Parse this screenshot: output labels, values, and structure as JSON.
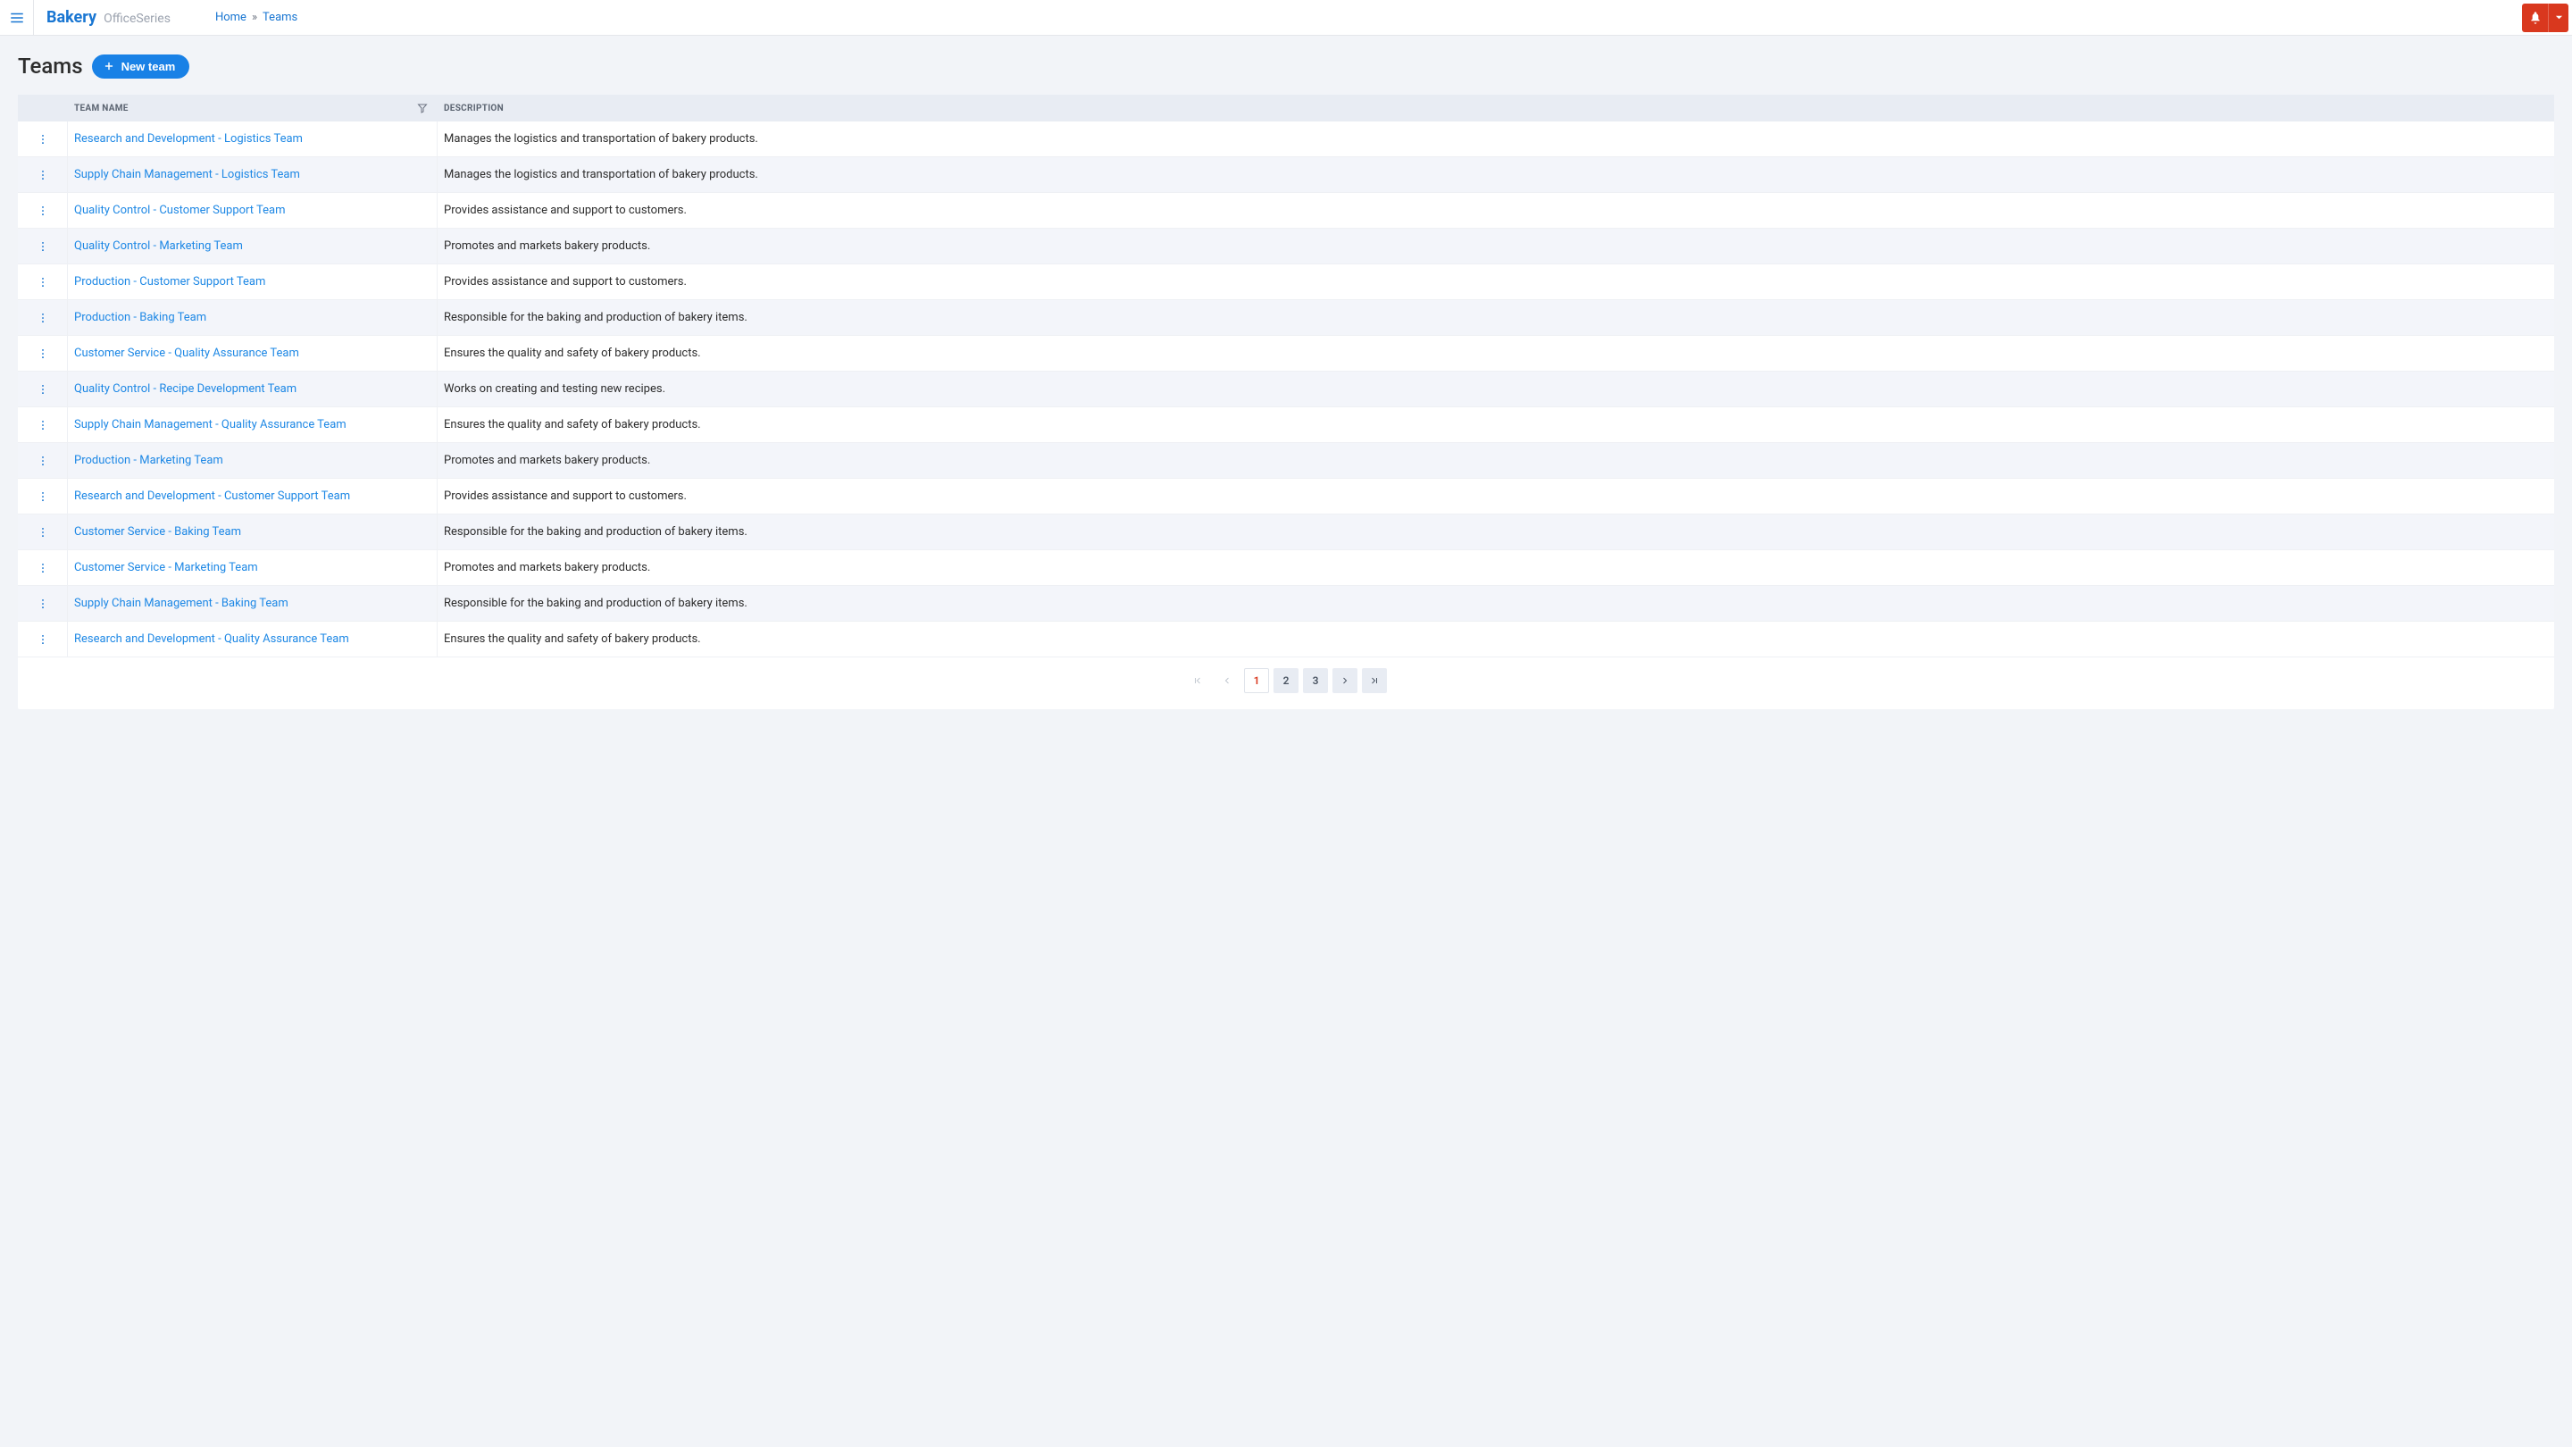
{
  "header": {
    "brand_name": "Bakery",
    "brand_suffix": "OfficeSeries",
    "breadcrumb": {
      "home": "Home",
      "separator": "»",
      "current": "Teams"
    }
  },
  "page": {
    "title": "Teams",
    "new_button_label": "New team"
  },
  "table": {
    "columns": {
      "name": "TEAM NAME",
      "description": "DESCRIPTION"
    },
    "rows": [
      {
        "name": "Research and Development - Logistics Team",
        "description": "Manages the logistics and transportation of bakery products."
      },
      {
        "name": "Supply Chain Management - Logistics Team",
        "description": "Manages the logistics and transportation of bakery products."
      },
      {
        "name": "Quality Control - Customer Support Team",
        "description": "Provides assistance and support to customers."
      },
      {
        "name": "Quality Control - Marketing Team",
        "description": "Promotes and markets bakery products."
      },
      {
        "name": "Production - Customer Support Team",
        "description": "Provides assistance and support to customers."
      },
      {
        "name": "Production - Baking Team",
        "description": "Responsible for the baking and production of bakery items."
      },
      {
        "name": "Customer Service - Quality Assurance Team",
        "description": "Ensures the quality and safety of bakery products."
      },
      {
        "name": "Quality Control - Recipe Development Team",
        "description": "Works on creating and testing new recipes."
      },
      {
        "name": "Supply Chain Management - Quality Assurance Team",
        "description": "Ensures the quality and safety of bakery products."
      },
      {
        "name": "Production - Marketing Team",
        "description": "Promotes and markets bakery products."
      },
      {
        "name": "Research and Development - Customer Support Team",
        "description": "Provides assistance and support to customers."
      },
      {
        "name": "Customer Service - Baking Team",
        "description": "Responsible for the baking and production of bakery items."
      },
      {
        "name": "Customer Service - Marketing Team",
        "description": "Promotes and markets bakery products."
      },
      {
        "name": "Supply Chain Management - Baking Team",
        "description": "Responsible for the baking and production of bakery items."
      },
      {
        "name": "Research and Development - Quality Assurance Team",
        "description": "Ensures the quality and safety of bakery products."
      }
    ]
  },
  "pagination": {
    "pages": [
      "1",
      "2",
      "3"
    ],
    "current": "1"
  },
  "colors": {
    "primary": "#1976d2",
    "accent": "#d9381e",
    "bg": "#f2f4f8",
    "row_alt": "#f3f5fa",
    "header_bg": "#e8ecf3"
  }
}
